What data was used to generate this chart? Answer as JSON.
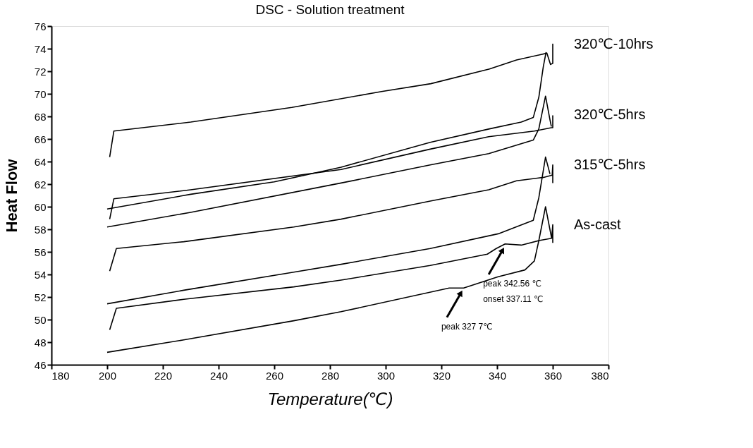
{
  "chart_data": {
    "type": "line",
    "title": "DSC - Solution treatment",
    "xlabel": "Temperature(℃)",
    "ylabel": "Heat Flow",
    "xlim": [
      180,
      380
    ],
    "xticks": [
      180,
      200,
      220,
      240,
      260,
      280,
      300,
      320,
      340,
      360,
      380
    ],
    "ylim": [
      46,
      76
    ],
    "yticks": [
      46,
      48,
      50,
      52,
      54,
      56,
      58,
      60,
      62,
      64,
      66,
      68,
      70,
      72,
      74,
      76
    ],
    "line_style": "solid",
    "series": [
      {
        "name": "320℃-10hrs",
        "color": "#000000",
        "x": [
          200.9,
          202.4,
          230,
          266.3,
          298.5,
          316.2,
          337.3,
          347,
          357.9,
          359.2,
          360,
          360,
          360
        ],
        "values": [
          64.4,
          66.7,
          67.5,
          68.8,
          70.2,
          70.9,
          72.2,
          73.0,
          73.6,
          72.6,
          72.7,
          74.4,
          73.6
        ]
      },
      {
        "color": "#000000",
        "x": [
          200,
          230,
          260,
          284,
          316,
          337.3,
          348.7,
          353,
          355,
          356.6,
          357.6
        ],
        "values": [
          59.8,
          61.1,
          62.2,
          63.5,
          65.7,
          66.9,
          67.5,
          67.9,
          69.7,
          72.4,
          73.7
        ]
      },
      {
        "name": "320℃-5hrs",
        "color": "#000000",
        "x": [
          200.9,
          202.4,
          230,
          284,
          316,
          337,
          353.4,
          359.5,
          360,
          360
        ],
        "values": [
          58.9,
          60.7,
          61.5,
          63.3,
          65.1,
          66.2,
          66.7,
          67.0,
          67.0,
          68.1
        ]
      },
      {
        "color": "#000000",
        "x": [
          200,
          230,
          284,
          316,
          337,
          353,
          355,
          357.4,
          359,
          359.5
        ],
        "values": [
          58.2,
          59.5,
          62.1,
          63.7,
          64.7,
          65.9,
          66.9,
          69.8,
          67.7,
          67.1
        ]
      },
      {
        "name": "315℃-5hrs",
        "color": "#000000",
        "x": [
          200.9,
          203.3,
          227.5,
          267,
          284,
          316,
          337,
          347,
          356.7,
          359.8,
          360,
          360
        ],
        "values": [
          54.3,
          56.3,
          56.9,
          58.2,
          58.9,
          60.5,
          61.5,
          62.3,
          62.6,
          62.8,
          63.7,
          62.1
        ]
      },
      {
        "color": "#000000",
        "x": [
          200,
          227.5,
          267,
          284,
          316,
          340.4,
          353,
          355,
          357.4,
          359
        ],
        "values": [
          51.4,
          52.6,
          54.2,
          54.9,
          56.3,
          57.6,
          58.8,
          60.8,
          64.4,
          62.9
        ]
      },
      {
        "name": "As-cast",
        "color": "#000000",
        "x": [
          200.9,
          203.3,
          227.5,
          267,
          284,
          316,
          336.5,
          339.7,
          342.9,
          348.7,
          355,
          359.6,
          360,
          360
        ],
        "values": [
          49.1,
          51.0,
          51.8,
          52.9,
          53.5,
          54.8,
          55.8,
          56.3,
          56.7,
          56.6,
          57.0,
          57.2,
          58.4,
          56.8
        ]
      },
      {
        "color": "#000000",
        "x": [
          200,
          227.5,
          267,
          284,
          322.8,
          328,
          340.4,
          350,
          353.4,
          355,
          357.4,
          359.6
        ],
        "values": [
          47.1,
          48.2,
          49.9,
          50.7,
          52.8,
          52.8,
          53.8,
          54.4,
          55.2,
          57.0,
          60.0,
          57.2
        ]
      }
    ],
    "annotations": [
      {
        "text": "peak  327 7℃",
        "x": 328,
        "y": 52.8
      },
      {
        "text": "peak  342.56 ℃\nonset 337.11 ℃",
        "x": 343,
        "y": 56.6
      }
    ]
  }
}
